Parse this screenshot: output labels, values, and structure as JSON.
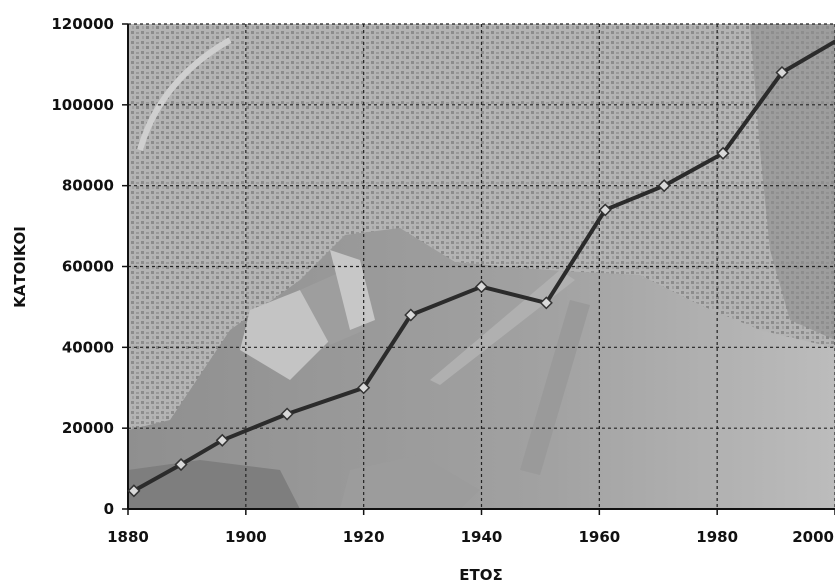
{
  "chart_data": {
    "type": "line",
    "title": "",
    "xlabel": "ΕΤΟΣ",
    "ylabel": "ΚΑΤΟΙΚΟΙ",
    "xlim": [
      1880,
      2000
    ],
    "ylim": [
      0,
      120000
    ],
    "x_ticks": [
      1880,
      1900,
      1920,
      1940,
      1960,
      1980,
      2000
    ],
    "y_ticks": [
      0,
      20000,
      40000,
      60000,
      80000,
      100000,
      120000
    ],
    "grid": true,
    "legend": "none",
    "background": "aerial photograph of a coastal city",
    "series": [
      {
        "x": [
          1881,
          1889,
          1896,
          1907,
          1920,
          1928,
          1940,
          1951,
          1961,
          1971,
          1981,
          1991,
          2001
        ],
        "y": [
          4500,
          11000,
          17000,
          23500,
          30000,
          48000,
          55000,
          51000,
          74000,
          80000,
          88000,
          108000,
          116500
        ]
      }
    ],
    "colors": {
      "line": "#2b2b2b",
      "marker_fill": "#d9d9d9",
      "marker_stroke": "#333333",
      "grid": "#222222"
    }
  }
}
